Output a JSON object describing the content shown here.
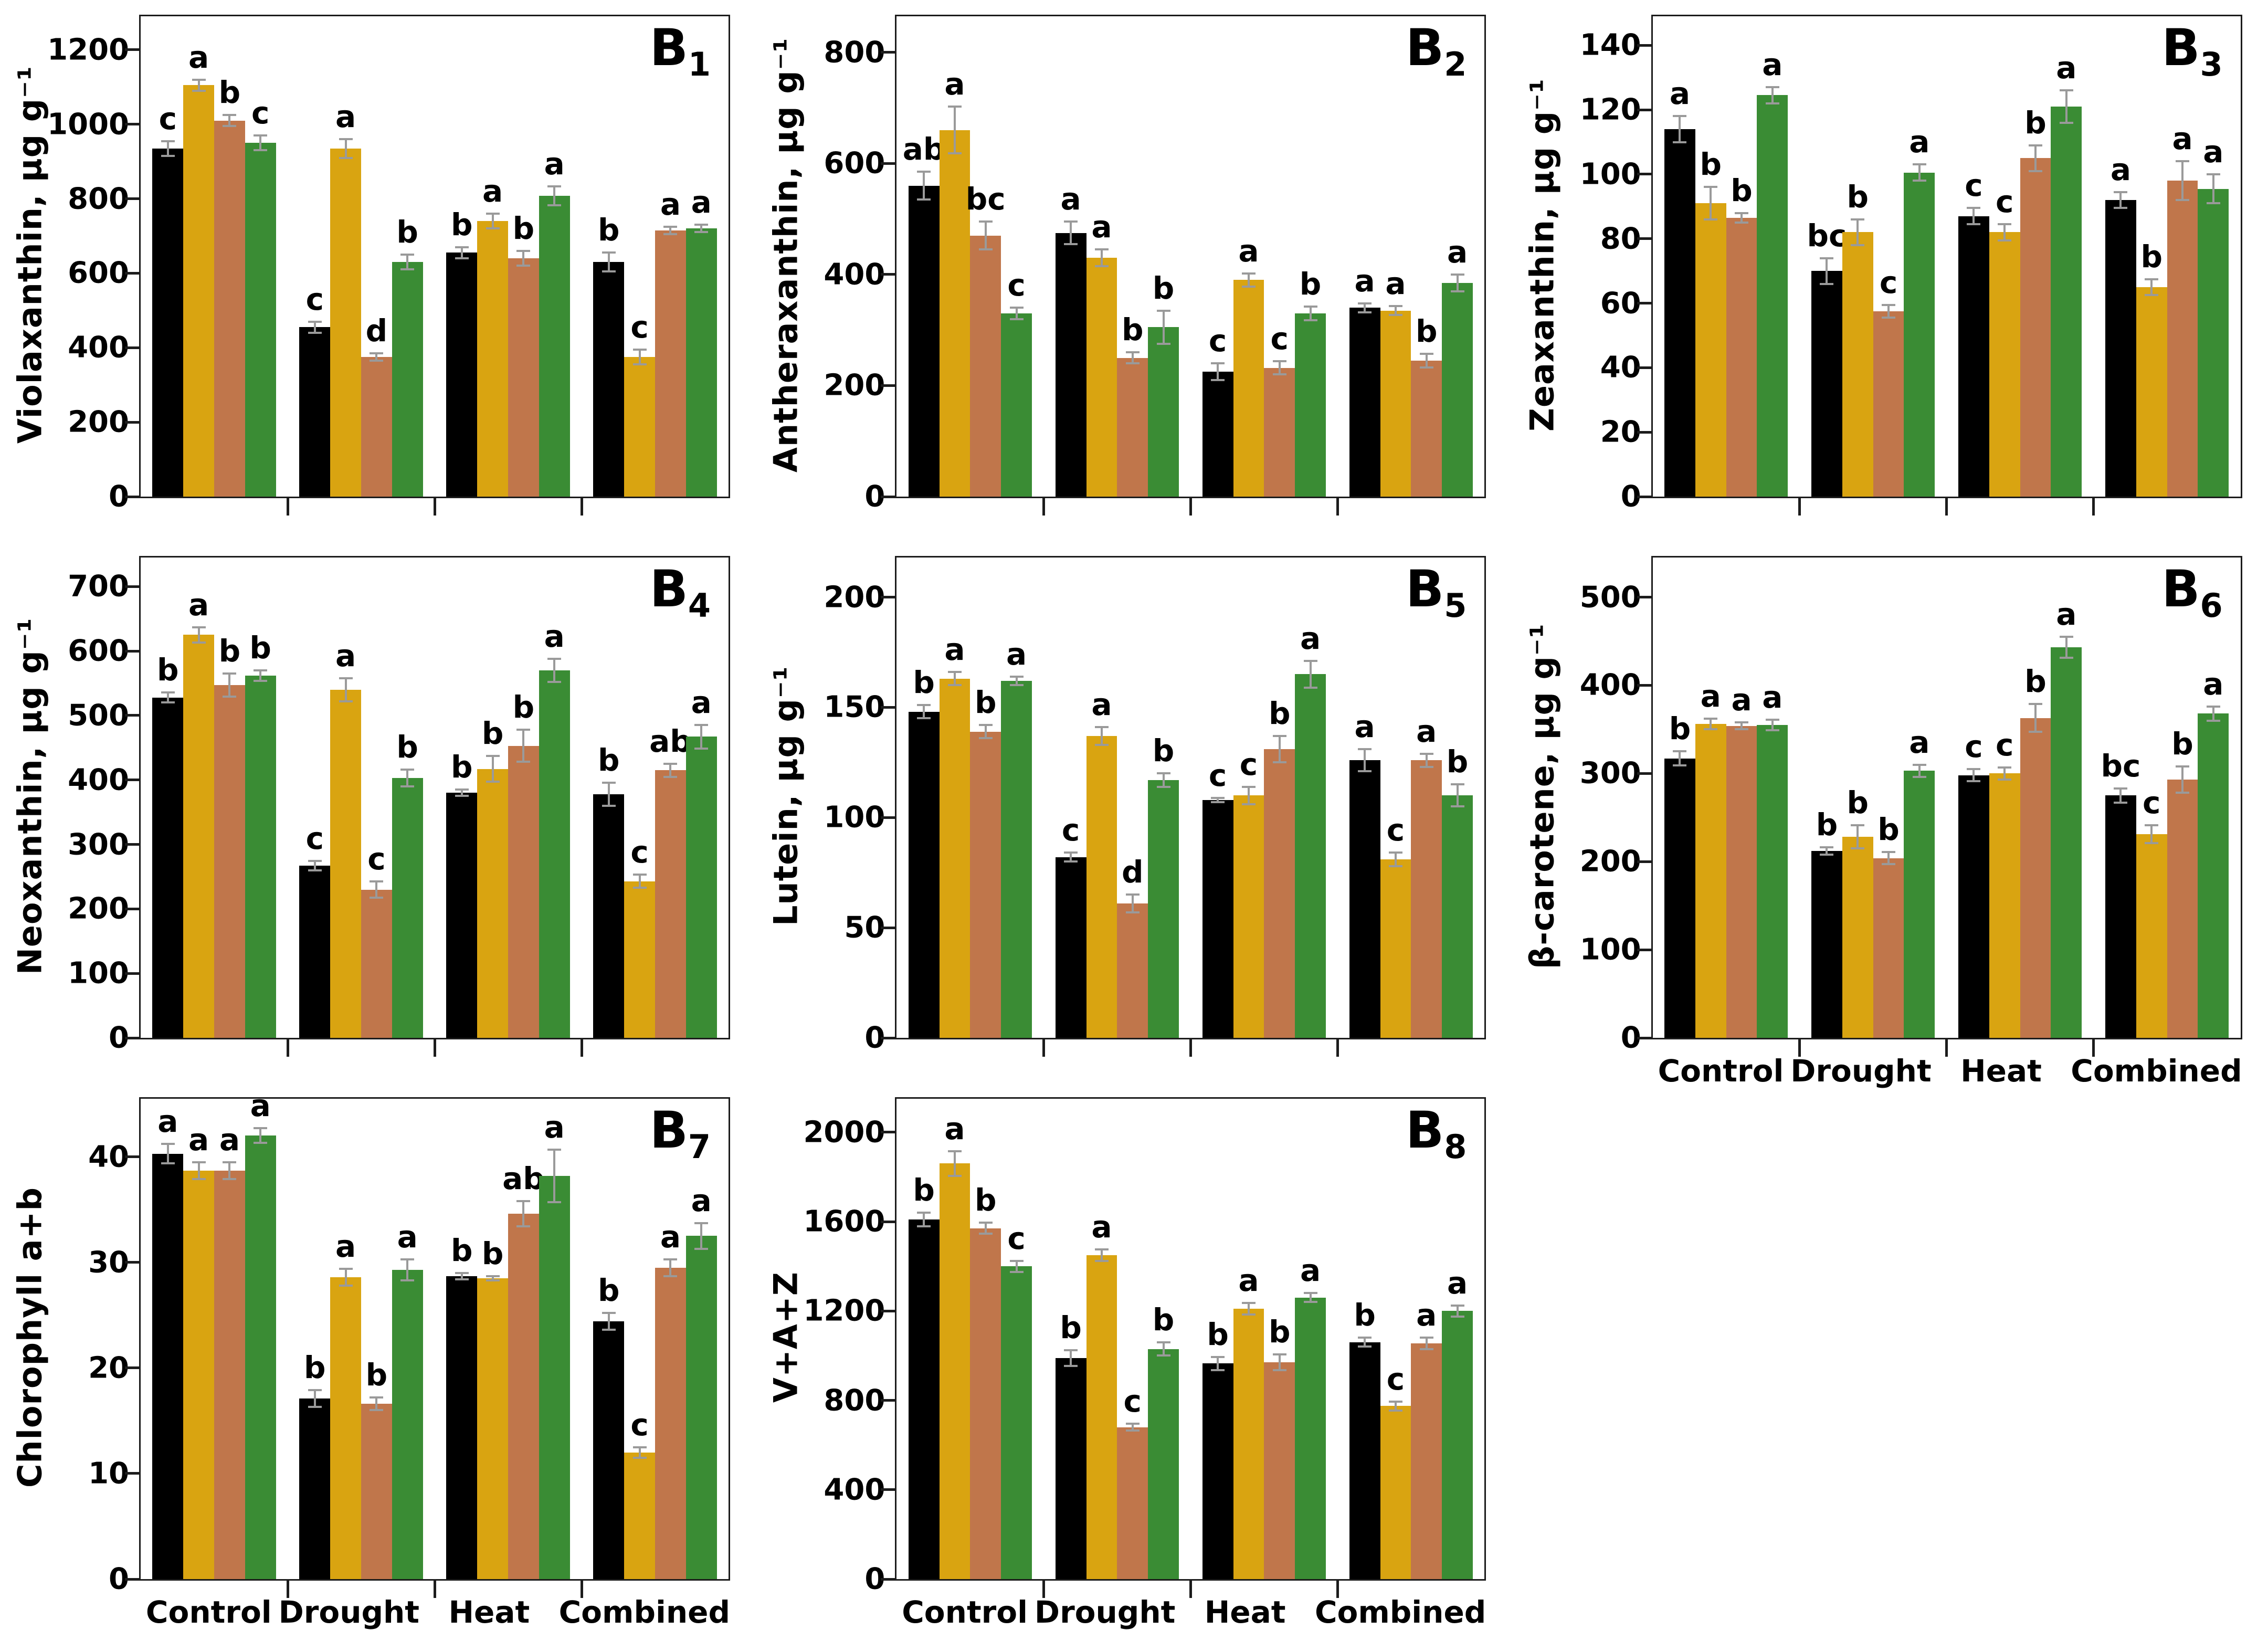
{
  "figure": {
    "error_bar_color": "#9a9a9a",
    "axis_color": "#1c1c1c",
    "background": "#ffffff"
  },
  "categories": [
    "Control",
    "Drought",
    "Heat",
    "Combined"
  ],
  "series_colors": {
    "black": "#000000",
    "gold": "#D9A411",
    "brown": "#C0764B",
    "green": "#3A8C34"
  },
  "chart_data": [
    {
      "id": "B1",
      "label_prefix": "B",
      "label_sub": "1",
      "type": "bar",
      "ylabel": "Violaxanthin, µg g⁻¹",
      "ylim": [
        0,
        1290
      ],
      "yticks": [
        0,
        200,
        400,
        600,
        800,
        1000,
        1200
      ],
      "categories": [
        "Control",
        "Drought",
        "Heat",
        "Combined"
      ],
      "show_x_labels": false,
      "series": [
        {
          "name": "black",
          "color": "#000000",
          "values": [
            935,
            455,
            655,
            630
          ],
          "errors": [
            20,
            15,
            15,
            25
          ],
          "letters": [
            "c",
            "c",
            "b",
            "b"
          ]
        },
        {
          "name": "gold",
          "color": "#D9A411",
          "values": [
            1105,
            935,
            740,
            375
          ],
          "errors": [
            15,
            25,
            20,
            20
          ],
          "letters": [
            "a",
            "a",
            "a",
            "c"
          ]
        },
        {
          "name": "brown",
          "color": "#C0764B",
          "values": [
            1010,
            375,
            640,
            715
          ],
          "errors": [
            15,
            10,
            20,
            10
          ],
          "letters": [
            "b",
            "d",
            "b",
            "a"
          ]
        },
        {
          "name": "green",
          "color": "#3A8C34",
          "values": [
            950,
            630,
            808,
            720
          ],
          "errors": [
            20,
            20,
            25,
            10
          ],
          "letters": [
            "c",
            "b",
            "a",
            "a"
          ]
        }
      ]
    },
    {
      "id": "B2",
      "label_prefix": "B",
      "label_sub": "2",
      "type": "bar",
      "ylabel": "Antheraxanthin, µg g⁻¹",
      "ylim": [
        0,
        865
      ],
      "yticks": [
        0,
        200,
        400,
        600,
        800
      ],
      "categories": [
        "Control",
        "Drought",
        "Heat",
        "Combined"
      ],
      "show_x_labels": false,
      "series": [
        {
          "name": "black",
          "color": "#000000",
          "values": [
            560,
            475,
            225,
            340
          ],
          "errors": [
            25,
            20,
            15,
            8
          ],
          "letters": [
            "ab",
            "a",
            "c",
            "a"
          ]
        },
        {
          "name": "gold",
          "color": "#D9A411",
          "values": [
            660,
            430,
            390,
            335
          ],
          "errors": [
            42,
            15,
            12,
            8
          ],
          "letters": [
            "a",
            "a",
            "a",
            "a"
          ]
        },
        {
          "name": "brown",
          "color": "#C0764B",
          "values": [
            470,
            250,
            232,
            245
          ],
          "errors": [
            25,
            10,
            12,
            12
          ],
          "letters": [
            "bc",
            "b",
            "c",
            "b"
          ]
        },
        {
          "name": "green",
          "color": "#3A8C34",
          "values": [
            330,
            305,
            330,
            385
          ],
          "errors": [
            10,
            30,
            12,
            15
          ],
          "letters": [
            "c",
            "b",
            "b",
            "a"
          ]
        }
      ]
    },
    {
      "id": "B3",
      "label_prefix": "B",
      "label_sub": "3",
      "type": "bar",
      "ylabel": "Zeaxanthin, µg g⁻¹",
      "ylim": [
        0,
        149
      ],
      "yticks": [
        0,
        20,
        40,
        60,
        80,
        100,
        120,
        140
      ],
      "categories": [
        "Control",
        "Drought",
        "Heat",
        "Combined"
      ],
      "show_x_labels": false,
      "series": [
        {
          "name": "black",
          "color": "#000000",
          "values": [
            114,
            70,
            87,
            92
          ],
          "errors": [
            4,
            4,
            2.5,
            2.5
          ],
          "letters": [
            "a",
            "bc",
            "c",
            "a"
          ]
        },
        {
          "name": "gold",
          "color": "#D9A411",
          "values": [
            91,
            82,
            82,
            65
          ],
          "errors": [
            5,
            4,
            2.5,
            2.5
          ],
          "letters": [
            "b",
            "b",
            "c",
            "b"
          ]
        },
        {
          "name": "brown",
          "color": "#C0764B",
          "values": [
            86.5,
            57.5,
            105,
            98
          ],
          "errors": [
            1.5,
            2,
            4,
            6
          ],
          "letters": [
            "b",
            "c",
            "b",
            "a"
          ]
        },
        {
          "name": "green",
          "color": "#3A8C34",
          "values": [
            124.5,
            100.5,
            121,
            95.5
          ],
          "errors": [
            2.5,
            2.5,
            5,
            4.5
          ],
          "letters": [
            "a",
            "a",
            "a",
            "a"
          ]
        }
      ]
    },
    {
      "id": "B4",
      "label_prefix": "B",
      "label_sub": "4",
      "type": "bar",
      "ylabel": "Neoxanthin, µg g⁻¹",
      "ylim": [
        0,
        745
      ],
      "yticks": [
        0,
        100,
        200,
        300,
        400,
        500,
        600,
        700
      ],
      "categories": [
        "Control",
        "Drought",
        "Heat",
        "Combined"
      ],
      "show_x_labels": false,
      "series": [
        {
          "name": "black",
          "color": "#000000",
          "values": [
            528,
            267,
            380,
            378
          ],
          "errors": [
            8,
            7,
            5,
            18
          ],
          "letters": [
            "b",
            "c",
            "b",
            "b"
          ]
        },
        {
          "name": "gold",
          "color": "#D9A411",
          "values": [
            625,
            540,
            417,
            243
          ],
          "errors": [
            12,
            18,
            20,
            10
          ],
          "letters": [
            "a",
            "a",
            "b",
            "c"
          ]
        },
        {
          "name": "brown",
          "color": "#C0764B",
          "values": [
            547,
            230,
            453,
            415
          ],
          "errors": [
            18,
            13,
            25,
            10
          ],
          "letters": [
            "b",
            "c",
            "b",
            "ab"
          ]
        },
        {
          "name": "green",
          "color": "#3A8C34",
          "values": [
            562,
            403,
            570,
            467
          ],
          "errors": [
            8,
            13,
            18,
            18
          ],
          "letters": [
            "b",
            "b",
            "a",
            "a"
          ]
        }
      ]
    },
    {
      "id": "B5",
      "label_prefix": "B",
      "label_sub": "5",
      "type": "bar",
      "ylabel": "Lutein, µg g⁻¹",
      "ylim": [
        0,
        218
      ],
      "yticks": [
        0,
        50,
        100,
        150,
        200
      ],
      "categories": [
        "Control",
        "Drought",
        "Heat",
        "Combined"
      ],
      "show_x_labels": false,
      "series": [
        {
          "name": "black",
          "color": "#000000",
          "values": [
            148,
            82,
            108,
            126
          ],
          "errors": [
            3,
            2,
            1,
            5
          ],
          "letters": [
            "b",
            "c",
            "c",
            "a"
          ]
        },
        {
          "name": "gold",
          "color": "#D9A411",
          "values": [
            163,
            137,
            110,
            81
          ],
          "errors": [
            3,
            4,
            4,
            3
          ],
          "letters": [
            "a",
            "a",
            "c",
            "c"
          ]
        },
        {
          "name": "brown",
          "color": "#C0764B",
          "values": [
            139,
            61,
            131,
            126
          ],
          "errors": [
            3,
            4,
            6,
            3
          ],
          "letters": [
            "b",
            "d",
            "b",
            "a"
          ]
        },
        {
          "name": "green",
          "color": "#3A8C34",
          "values": [
            162,
            117,
            165,
            110
          ],
          "errors": [
            2,
            3,
            6,
            5
          ],
          "letters": [
            "a",
            "b",
            "a",
            "b"
          ]
        }
      ]
    },
    {
      "id": "B6",
      "label_prefix": "B",
      "label_sub": "6",
      "type": "bar",
      "ylabel": "β-carotene, µg g⁻¹",
      "ylim": [
        0,
        545
      ],
      "yticks": [
        0,
        100,
        200,
        300,
        400,
        500
      ],
      "categories": [
        "Control",
        "Drought",
        "Heat",
        "Combined"
      ],
      "show_x_labels": true,
      "series": [
        {
          "name": "black",
          "color": "#000000",
          "values": [
            317,
            212,
            298,
            275
          ],
          "errors": [
            8,
            4,
            7,
            8
          ],
          "letters": [
            "b",
            "b",
            "c",
            "bc"
          ]
        },
        {
          "name": "gold",
          "color": "#D9A411",
          "values": [
            356,
            228,
            300,
            231
          ],
          "errors": [
            6,
            13,
            7,
            10
          ],
          "letters": [
            "a",
            "b",
            "c",
            "c"
          ]
        },
        {
          "name": "brown",
          "color": "#C0764B",
          "values": [
            354,
            204,
            363,
            293
          ],
          "errors": [
            4,
            7,
            16,
            15
          ],
          "letters": [
            "a",
            "b",
            "b",
            "b"
          ]
        },
        {
          "name": "green",
          "color": "#3A8C34",
          "values": [
            355,
            303,
            443,
            368
          ],
          "errors": [
            6,
            7,
            12,
            8
          ],
          "letters": [
            "a",
            "a",
            "a",
            "a"
          ]
        }
      ]
    },
    {
      "id": "B7",
      "label_prefix": "B",
      "label_sub": "7",
      "type": "bar",
      "ylabel": "Chlorophyll a+b",
      "ylim": [
        0,
        45.5
      ],
      "yticks": [
        0,
        10,
        20,
        30,
        40
      ],
      "categories": [
        "Control",
        "Drought",
        "Heat",
        "Combined"
      ],
      "show_x_labels": true,
      "series": [
        {
          "name": "black",
          "color": "#000000",
          "values": [
            40.3,
            17.1,
            28.7,
            24.4
          ],
          "errors": [
            0.9,
            0.8,
            0.3,
            0.8
          ],
          "letters": [
            "a",
            "b",
            "b",
            "b"
          ]
        },
        {
          "name": "gold",
          "color": "#D9A411",
          "values": [
            38.7,
            28.6,
            28.5,
            12.0
          ],
          "errors": [
            0.8,
            0.8,
            0.2,
            0.5
          ],
          "letters": [
            "a",
            "a",
            "b",
            "c"
          ]
        },
        {
          "name": "brown",
          "color": "#C0764B",
          "values": [
            38.7,
            16.6,
            34.6,
            29.5
          ],
          "errors": [
            0.8,
            0.6,
            1.2,
            0.8
          ],
          "letters": [
            "a",
            "b",
            "ab",
            "a"
          ]
        },
        {
          "name": "green",
          "color": "#3A8C34",
          "values": [
            42.0,
            29.3,
            38.2,
            32.5
          ],
          "errors": [
            0.7,
            1.0,
            2.5,
            1.2
          ],
          "letters": [
            "a",
            "a",
            "a",
            "a"
          ]
        }
      ]
    },
    {
      "id": "B8",
      "label_prefix": "B",
      "label_sub": "8",
      "type": "bar",
      "ylabel": "V+A+Z",
      "ylim": [
        0,
        2150
      ],
      "yticks": [
        0,
        400,
        800,
        1200,
        1600,
        2000
      ],
      "categories": [
        "Control",
        "Drought",
        "Heat",
        "Combined"
      ],
      "show_x_labels": true,
      "series": [
        {
          "name": "black",
          "color": "#000000",
          "values": [
            1610,
            990,
            965,
            1060
          ],
          "errors": [
            30,
            35,
            30,
            20
          ],
          "letters": [
            "b",
            "b",
            "b",
            "b"
          ]
        },
        {
          "name": "gold",
          "color": "#D9A411",
          "values": [
            1860,
            1450,
            1210,
            775
          ],
          "errors": [
            55,
            25,
            25,
            20
          ],
          "letters": [
            "a",
            "a",
            "a",
            "c"
          ]
        },
        {
          "name": "brown",
          "color": "#C0764B",
          "values": [
            1570,
            680,
            970,
            1055
          ],
          "errors": [
            25,
            15,
            35,
            25
          ],
          "letters": [
            "b",
            "c",
            "b",
            "a"
          ]
        },
        {
          "name": "green",
          "color": "#3A8C34",
          "values": [
            1400,
            1030,
            1260,
            1200
          ],
          "errors": [
            25,
            30,
            20,
            25
          ],
          "letters": [
            "c",
            "b",
            "a",
            "a"
          ]
        }
      ]
    }
  ]
}
